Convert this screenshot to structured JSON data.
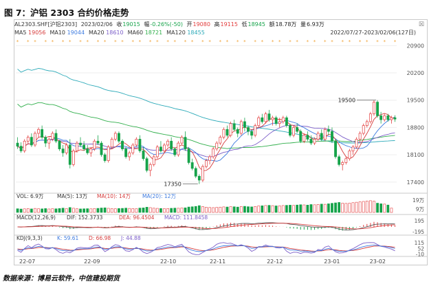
{
  "figure_title": "图 7：沪铝 2303 合约价格走势",
  "source": "数据来源：博易云软件，中信建投期货",
  "header": {
    "symbol": "AL2303.SHF[沪铝2303]",
    "date": "2023/02/06",
    "close_label": "收",
    "close": "19015",
    "change_label": "幅",
    "change": "-0.26%(-50)",
    "open_label": "开",
    "open": "19080",
    "high_label": "高",
    "high": "19115",
    "low_label": "低",
    "low": "18945",
    "amount_label": "额",
    "amount": "18.78万",
    "volume_label": "量",
    "volume": "6.93万",
    "close_icon": "close-icon"
  },
  "ma_legend": [
    {
      "label": "MA5",
      "value": "19056",
      "color": "#d63b3b"
    },
    {
      "label": "MA10",
      "value": "19044",
      "color": "#3d7be0"
    },
    {
      "label": "MA20",
      "value": "18610",
      "color": "#7a5cc8"
    },
    {
      "label": "MA60",
      "value": "18721",
      "color": "#2fae4a"
    },
    {
      "label": "MA120",
      "value": "18455",
      "color": "#2aa9b8"
    }
  ],
  "range_label": "2022/07/27-2023/02/06(127日)",
  "panels": {
    "vol": {
      "label": "VOL: 6.9万",
      "ma5": "MA(5): 13万",
      "ma10": "MA(10): 14万",
      "ma20": "MA(20): 12万"
    },
    "macd": {
      "label": "MACD(12,26,9)",
      "dif": "DIF: 152.3733",
      "dea": "DEA: 96.4504",
      "macd": "MACD: 111.8458"
    },
    "kdj": {
      "label": "KDJ(9,3,3)",
      "k": "K: 59.61",
      "d": "D: 66.98",
      "j": "J: 44.88"
    }
  },
  "colors": {
    "up": "#e23b3b",
    "down": "#16a34a",
    "ma5": "#d63b3b",
    "ma10": "#3d7be0",
    "ma20": "#7a5cc8",
    "ma60": "#2fae4a",
    "ma120": "#2aa9b8",
    "kdj_k": "#3d7be0",
    "kdj_d": "#d63b3b",
    "kdj_j": "#7a5cc8",
    "volume": "#e23b3b"
  },
  "chart_data": {
    "type": "candlestick",
    "price_axis": {
      "ticks": [
        17400,
        18100,
        18800,
        19500,
        20200,
        20900
      ],
      "ylim": [
        17150,
        21100
      ]
    },
    "x_axis": {
      "ticks": [
        "22-07",
        "22-09",
        "22-10",
        "22-11",
        "22-12",
        "23-01",
        "23-02"
      ]
    },
    "annotations": [
      {
        "label": "19500",
        "value": 19500,
        "kind": "high"
      },
      {
        "label": "17350",
        "value": 17350,
        "kind": "low"
      }
    ],
    "volume_axis": {
      "ticks": [
        "19万",
        "9万"
      ],
      "ylim": [
        0,
        200000
      ]
    },
    "macd_axis": {
      "ticks": [
        "195",
        "-195"
      ],
      "ylim": [
        -320,
        320
      ]
    },
    "kdj_axis": {
      "ticks": [
        "115",
        "52",
        "-10"
      ],
      "ylim": [
        -20,
        130
      ]
    },
    "candles": [
      [
        18400,
        18550,
        18250,
        18320
      ],
      [
        18320,
        18420,
        18150,
        18200
      ],
      [
        18200,
        18500,
        18150,
        18450
      ],
      [
        18450,
        18600,
        18380,
        18550
      ],
      [
        18550,
        18650,
        18300,
        18350
      ],
      [
        18350,
        18700,
        18300,
        18650
      ],
      [
        18650,
        18800,
        18550,
        18750
      ],
      [
        18750,
        18850,
        18500,
        18550
      ],
      [
        18550,
        18600,
        18300,
        18400
      ],
      [
        18400,
        18550,
        18250,
        18500
      ],
      [
        18500,
        18700,
        18450,
        18650
      ],
      [
        18650,
        18750,
        18400,
        18450
      ],
      [
        18450,
        18480,
        18200,
        18250
      ],
      [
        18250,
        18350,
        18050,
        18150
      ],
      [
        18150,
        18400,
        18100,
        18350
      ],
      [
        18350,
        18500,
        17750,
        17850
      ],
      [
        17850,
        18250,
        17800,
        18200
      ],
      [
        18200,
        18450,
        18150,
        18400
      ],
      [
        18400,
        18550,
        18300,
        18350
      ],
      [
        18350,
        18450,
        18200,
        18250
      ],
      [
        18250,
        18350,
        18100,
        18150
      ],
      [
        18150,
        18300,
        18050,
        18250
      ],
      [
        18250,
        18500,
        18200,
        18450
      ],
      [
        18450,
        18600,
        18350,
        18400
      ],
      [
        18400,
        18450,
        18050,
        18100
      ],
      [
        18100,
        18150,
        17900,
        17950
      ],
      [
        17950,
        18350,
        17900,
        18300
      ],
      [
        18300,
        18550,
        18250,
        18500
      ],
      [
        18500,
        18700,
        18450,
        18650
      ],
      [
        18650,
        18700,
        18400,
        18450
      ],
      [
        18450,
        18500,
        18200,
        18250
      ],
      [
        18250,
        18300,
        18000,
        18050
      ],
      [
        18050,
        18200,
        17950,
        18150
      ],
      [
        18150,
        18400,
        18100,
        18350
      ],
      [
        18350,
        18550,
        18300,
        18500
      ],
      [
        18500,
        18600,
        18150,
        18200
      ],
      [
        18200,
        18300,
        17950,
        18000
      ],
      [
        18000,
        18050,
        17650,
        17700
      ],
      [
        17700,
        17900,
        17550,
        17850
      ],
      [
        17850,
        18100,
        17800,
        18050
      ],
      [
        18050,
        18350,
        18000,
        18300
      ],
      [
        18300,
        18450,
        18150,
        18200
      ],
      [
        18200,
        18400,
        18150,
        18350
      ],
      [
        18350,
        18500,
        18300,
        18450
      ],
      [
        18450,
        18550,
        18200,
        18250
      ],
      [
        18250,
        18300,
        18050,
        18100
      ],
      [
        18100,
        18450,
        18050,
        18400
      ],
      [
        18400,
        18600,
        18350,
        18550
      ],
      [
        18550,
        18700,
        18200,
        18250
      ],
      [
        18250,
        18300,
        17850,
        17900
      ],
      [
        17900,
        18000,
        17700,
        17750
      ],
      [
        17750,
        17800,
        17500,
        17550
      ],
      [
        17550,
        17600,
        17350,
        17450
      ],
      [
        17450,
        17850,
        17400,
        17800
      ],
      [
        17800,
        18000,
        17750,
        17950
      ],
      [
        17950,
        18100,
        17850,
        18050
      ],
      [
        18050,
        18300,
        18000,
        18250
      ],
      [
        18250,
        18450,
        18200,
        18400
      ],
      [
        18400,
        18600,
        18350,
        18550
      ],
      [
        18550,
        18800,
        18500,
        18750
      ],
      [
        18750,
        18850,
        18550,
        18600
      ],
      [
        18600,
        18950,
        18550,
        18900
      ],
      [
        18900,
        19000,
        18700,
        18750
      ],
      [
        18750,
        18800,
        18550,
        18650
      ],
      [
        18650,
        19000,
        18600,
        18950
      ],
      [
        18950,
        19050,
        18700,
        18800
      ],
      [
        18800,
        18850,
        18600,
        18700
      ],
      [
        18700,
        18750,
        18500,
        18600
      ],
      [
        18600,
        18900,
        18550,
        18850
      ],
      [
        18850,
        19100,
        18800,
        19050
      ],
      [
        19050,
        19150,
        18900,
        18950
      ],
      [
        18950,
        19200,
        18900,
        19150
      ],
      [
        19150,
        19250,
        18950,
        19000
      ],
      [
        19000,
        19100,
        18850,
        19050
      ],
      [
        19050,
        19100,
        18850,
        18900
      ],
      [
        18900,
        19050,
        18800,
        18950
      ],
      [
        18950,
        19100,
        18900,
        19050
      ],
      [
        19050,
        19100,
        18800,
        18850
      ],
      [
        18850,
        18900,
        18550,
        18600
      ],
      [
        18600,
        18850,
        18550,
        18800
      ],
      [
        18800,
        18900,
        18650,
        18700
      ],
      [
        18700,
        18750,
        18400,
        18450
      ],
      [
        18450,
        18650,
        18400,
        18600
      ],
      [
        18600,
        18700,
        18450,
        18500
      ],
      [
        18500,
        18600,
        18350,
        18400
      ],
      [
        18400,
        18550,
        18350,
        18500
      ],
      [
        18500,
        18700,
        18450,
        18650
      ],
      [
        18650,
        18750,
        18450,
        18500
      ],
      [
        18500,
        18800,
        18450,
        18750
      ],
      [
        18750,
        18850,
        18600,
        18700
      ],
      [
        18700,
        18800,
        18400,
        18450
      ],
      [
        18450,
        18500,
        18000,
        18050
      ],
      [
        18050,
        18100,
        17800,
        17850
      ],
      [
        17850,
        17950,
        17700,
        17900
      ],
      [
        17900,
        18050,
        17850,
        18000
      ],
      [
        18000,
        18250,
        17950,
        18200
      ],
      [
        18200,
        18350,
        18100,
        18300
      ],
      [
        18300,
        18550,
        18250,
        18500
      ],
      [
        18500,
        18700,
        18400,
        18650
      ],
      [
        18650,
        18900,
        18600,
        18850
      ],
      [
        18850,
        19000,
        18800,
        18950
      ],
      [
        18950,
        19200,
        18900,
        19150
      ],
      [
        19150,
        19500,
        19100,
        19450
      ],
      [
        19450,
        19500,
        19050,
        19100
      ],
      [
        19100,
        19200,
        18900,
        19000
      ],
      [
        19000,
        19150,
        18950,
        19100
      ],
      [
        19100,
        19150,
        18950,
        19000
      ],
      [
        19000,
        19100,
        18900,
        19050
      ],
      [
        19050,
        19115,
        18945,
        19015
      ]
    ],
    "volumes": [
      60000,
      55000,
      58000,
      62000,
      57000,
      65000,
      60000,
      58000,
      63000,
      56000,
      61000,
      59000,
      64000,
      70000,
      62000,
      80000,
      68000,
      60000,
      57000,
      59000,
      61000,
      58000,
      63000,
      66000,
      72000,
      75000,
      67000,
      62000,
      60000,
      64000,
      66000,
      70000,
      65000,
      62000,
      60000,
      71000,
      74000,
      85000,
      78000,
      69000,
      66000,
      64000,
      62000,
      63000,
      67000,
      70000,
      68000,
      72000,
      75000,
      88000,
      92000,
      98000,
      110000,
      95000,
      85000,
      80000,
      78000,
      82000,
      86000,
      90000,
      88000,
      94000,
      92000,
      87000,
      96000,
      99000,
      93000,
      90000,
      97000,
      105000,
      108000,
      112000,
      115000,
      110000,
      106000,
      108000,
      112000,
      115000,
      118000,
      114000,
      120000,
      125000,
      122000,
      119000,
      128000,
      124000,
      130000,
      135000,
      132000,
      140000,
      148000,
      155000,
      162000,
      150000,
      146000,
      150000,
      158000,
      165000,
      172000,
      178000,
      185000,
      190000,
      182000,
      150000,
      140000,
      135000,
      120000,
      69300
    ]
  }
}
